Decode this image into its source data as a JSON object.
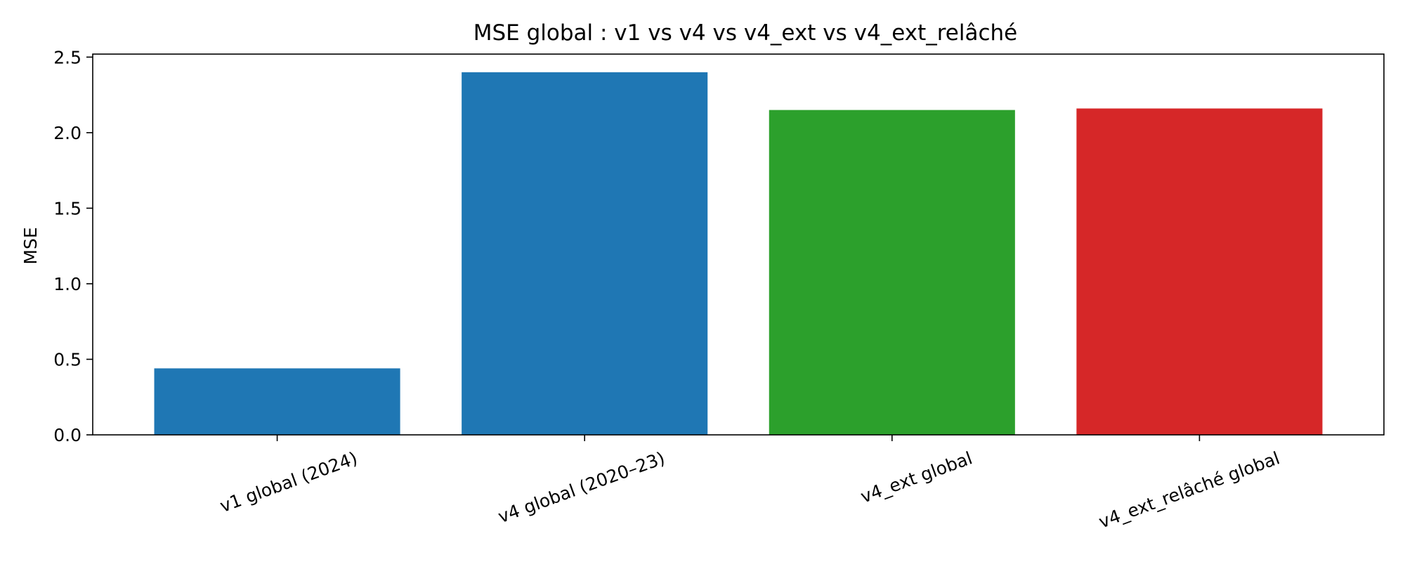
{
  "chart_data": {
    "type": "bar",
    "title": "MSE global : v1 vs v4 vs v4_ext vs v4_ext_relâché",
    "xlabel": "",
    "ylabel": "MSE",
    "categories": [
      "v1 global (2024)",
      "v4 global (2020–23)",
      "v4_ext global",
      "v4_ext_relâché global"
    ],
    "values": [
      0.44,
      2.4,
      2.15,
      2.16
    ],
    "colors": [
      "#1f77b4",
      "#1f77b4",
      "#2ca02c",
      "#d62728"
    ],
    "ylim": [
      0,
      2.52
    ],
    "yticks": [
      "0.0",
      "0.5",
      "1.0",
      "1.5",
      "2.0",
      "2.5"
    ],
    "grid": false,
    "legend": "none"
  }
}
